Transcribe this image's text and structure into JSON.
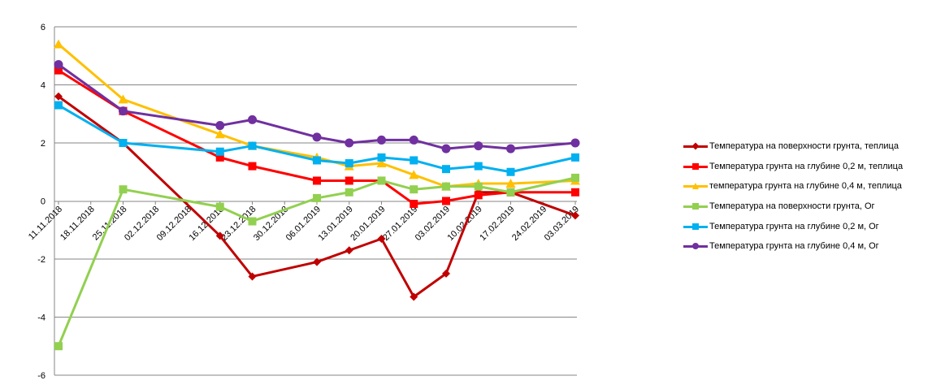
{
  "chart_data": {
    "type": "line",
    "x": [
      "11.11.2018",
      "18.11.2018",
      "25.11.2018",
      "02.12.2018",
      "09.12.2018",
      "16.12.2018",
      "23.12.2018",
      "30.12.2018",
      "06.01.2019",
      "13.01.2019",
      "20.01.2019",
      "27.01.2019",
      "03.02.2019",
      "10.02.2019",
      "17.02.2019",
      "24.02.2019",
      "03.03.2019"
    ],
    "x_tick_labels": [
      "11.11.2018",
      "18.11.2018",
      "25.11.2018",
      "02.12.2018",
      "09.12.2018",
      "16.12.2018",
      "23.12.2018",
      "30.12.2018",
      "06.01.2019",
      "13.01.2019",
      "20.01.2019",
      "27.01.2019",
      "03.02.2019",
      "10.02.2019",
      "17.02.2019",
      "24.02.2019",
      "03.03.2019"
    ],
    "ylim": [
      -6,
      6
    ],
    "y_ticks": [
      -6,
      -4,
      -2,
      0,
      2,
      4,
      6
    ],
    "grid": true,
    "legend_position": "right",
    "series": [
      {
        "name": "Температура  на поверхности грунта, теплица",
        "color": "#C00000",
        "marker": "diamond",
        "points": [
          [
            "11.11.2018",
            3.6
          ],
          [
            "25.11.2018",
            2.0
          ],
          [
            "16.12.2018",
            -1.2
          ],
          [
            "23.12.2018",
            -2.6
          ],
          [
            "06.01.2019",
            -2.1
          ],
          [
            "13.01.2019",
            -1.7
          ],
          [
            "20.01.2019",
            -1.3
          ],
          [
            "27.01.2019",
            -3.3
          ],
          [
            "03.02.2019",
            -2.5
          ],
          [
            "10.02.2019",
            0.3
          ],
          [
            "17.02.2019",
            0.3
          ],
          [
            "03.03.2019",
            -0.5
          ]
        ]
      },
      {
        "name": "Температура  грунта на глубине 0,2 м, теплица",
        "color": "#FF0000",
        "marker": "square",
        "points": [
          [
            "11.11.2018",
            4.5
          ],
          [
            "25.11.2018",
            3.1
          ],
          [
            "16.12.2018",
            1.5
          ],
          [
            "23.12.2018",
            1.2
          ],
          [
            "06.01.2019",
            0.7
          ],
          [
            "13.01.2019",
            0.7
          ],
          [
            "20.01.2019",
            0.7
          ],
          [
            "27.01.2019",
            -0.1
          ],
          [
            "03.02.2019",
            0.0
          ],
          [
            "10.02.2019",
            0.2
          ],
          [
            "17.02.2019",
            0.3
          ],
          [
            "03.03.2019",
            0.3
          ]
        ]
      },
      {
        "name": "температура грунта на глубине 0,4 м, теплица",
        "color": "#FFC000",
        "marker": "triangle",
        "points": [
          [
            "11.11.2018",
            5.4
          ],
          [
            "25.11.2018",
            3.5
          ],
          [
            "16.12.2018",
            2.3
          ],
          [
            "23.12.2018",
            1.9
          ],
          [
            "06.01.2019",
            1.5
          ],
          [
            "13.01.2019",
            1.2
          ],
          [
            "20.01.2019",
            1.3
          ],
          [
            "27.01.2019",
            0.9
          ],
          [
            "03.02.2019",
            0.5
          ],
          [
            "10.02.2019",
            0.6
          ],
          [
            "17.02.2019",
            0.6
          ],
          [
            "03.03.2019",
            0.7
          ]
        ]
      },
      {
        "name": "Температура  на поверхности грунта, Ог",
        "color": "#92D050",
        "marker": "square",
        "points": [
          [
            "11.11.2018",
            -5.0
          ],
          [
            "25.11.2018",
            0.4
          ],
          [
            "16.12.2018",
            -0.2
          ],
          [
            "23.12.2018",
            -0.7
          ],
          [
            "06.01.2019",
            0.1
          ],
          [
            "13.01.2019",
            0.3
          ],
          [
            "20.01.2019",
            0.7
          ],
          [
            "27.01.2019",
            0.4
          ],
          [
            "03.02.2019",
            0.5
          ],
          [
            "10.02.2019",
            0.5
          ],
          [
            "17.02.2019",
            0.3
          ],
          [
            "03.03.2019",
            0.8
          ]
        ]
      },
      {
        "name": "Температура  грунта  на глубине 0,2 м, Ог",
        "color": "#00B0F0",
        "marker": "square",
        "points": [
          [
            "11.11.2018",
            3.3
          ],
          [
            "25.11.2018",
            2.0
          ],
          [
            "16.12.2018",
            1.7
          ],
          [
            "23.12.2018",
            1.9
          ],
          [
            "06.01.2019",
            1.4
          ],
          [
            "13.01.2019",
            1.3
          ],
          [
            "20.01.2019",
            1.5
          ],
          [
            "27.01.2019",
            1.4
          ],
          [
            "03.02.2019",
            1.1
          ],
          [
            "10.02.2019",
            1.2
          ],
          [
            "17.02.2019",
            1.0
          ],
          [
            "03.03.2019",
            1.5
          ]
        ]
      },
      {
        "name": "Температура  грунта  на глубине 0,4 м, Ог",
        "color": "#7030A0",
        "marker": "circle",
        "points": [
          [
            "11.11.2018",
            4.7
          ],
          [
            "25.11.2018",
            3.1
          ],
          [
            "16.12.2018",
            2.6
          ],
          [
            "23.12.2018",
            2.8
          ],
          [
            "06.01.2019",
            2.2
          ],
          [
            "13.01.2019",
            2.0
          ],
          [
            "20.01.2019",
            2.1
          ],
          [
            "27.01.2019",
            2.1
          ],
          [
            "03.02.2019",
            1.8
          ],
          [
            "10.02.2019",
            1.9
          ],
          [
            "17.02.2019",
            1.8
          ],
          [
            "03.03.2019",
            2.0
          ]
        ]
      }
    ]
  }
}
